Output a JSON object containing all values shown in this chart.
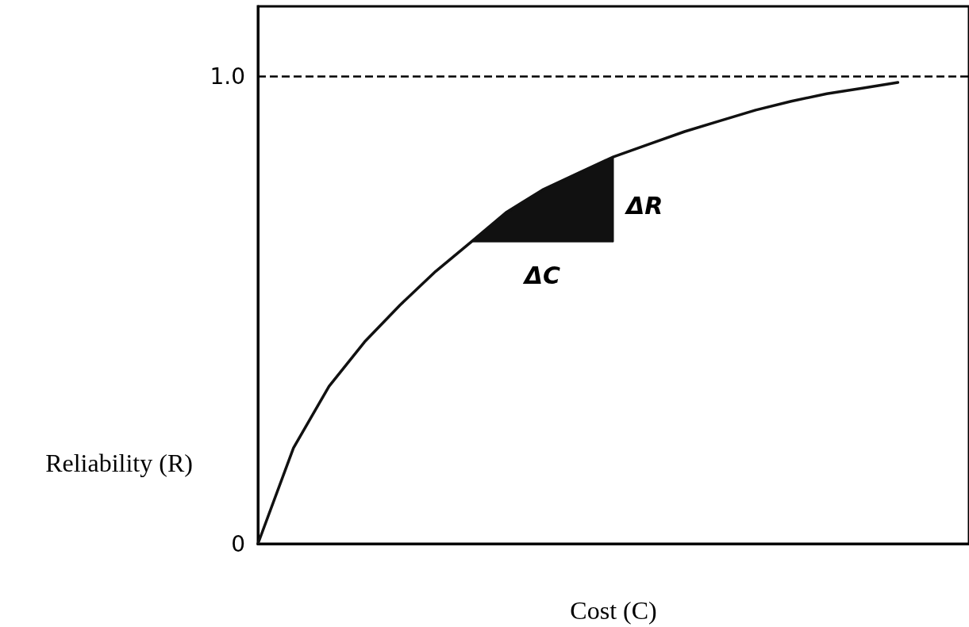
{
  "chart_data": {
    "type": "line",
    "xlabel": "Cost (C)",
    "ylabel": "Reliability (R)",
    "ylim": [
      0,
      1.15
    ],
    "yticks": [
      0,
      {
        "value": 1,
        "label": "1.0"
      }
    ],
    "tick_labels": "y",
    "grid": false,
    "marker": "none",
    "line_style": "solid",
    "categories": [
      null,
      null,
      null,
      null,
      null,
      null,
      null,
      null,
      null,
      null,
      null,
      null,
      null,
      null,
      null,
      null,
      null,
      null,
      null,
      null,
      null
    ],
    "series": [
      {
        "color": "#111111",
        "values": [
          0,
          0.205,
          0.337,
          0.432,
          0.511,
          0.583,
          0.646,
          0.71,
          0.757,
          0.793,
          0.828,
          0.855,
          0.882,
          0.905,
          0.928,
          0.947,
          0.963,
          0.975,
          0.987,
          null,
          null
        ]
      }
    ],
    "ref_lines": [
      {
        "axis": "y",
        "value": 1,
        "line_style": "dashed"
      }
    ],
    "annotations": [
      "ΔC",
      "ΔR"
    ]
  }
}
